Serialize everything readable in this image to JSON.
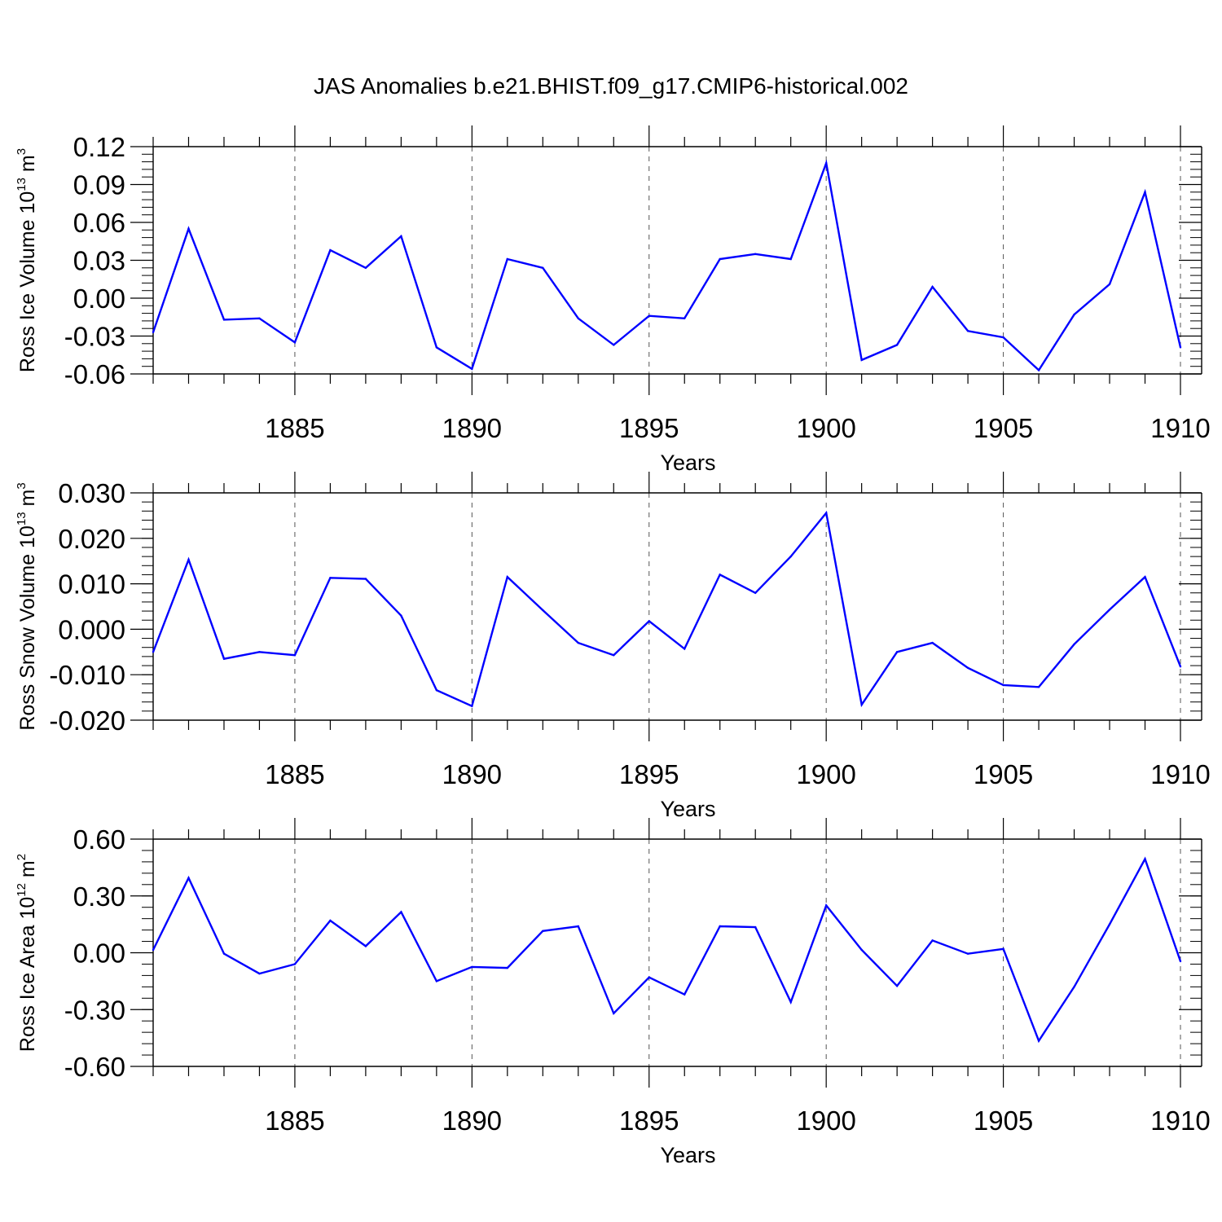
{
  "figure": {
    "title": "JAS Anomalies b.e21.BHIST.f09_g17.CMIP6-historical.002"
  },
  "style": {
    "line_color": "#0000ff",
    "axis_color": "#000000",
    "grid_color": "#555555"
  },
  "chart_data": [
    {
      "type": "line",
      "ylabel": {
        "main": "Ross Ice Volume 10",
        "exp": "13",
        "unit": " m",
        "unit_exp": "3"
      },
      "xlabel": "Years",
      "xlim": [
        1881,
        1910
      ],
      "ylim": [
        -0.06,
        0.12
      ],
      "x_major_ticks": [
        1885,
        1890,
        1895,
        1900,
        1905,
        1910
      ],
      "x_tick_labels": [
        "1885",
        "1890",
        "1895",
        "1900",
        "1905",
        "1910"
      ],
      "y_major_ticks": [
        -0.06,
        -0.03,
        0.0,
        0.03,
        0.06,
        0.09,
        0.12
      ],
      "y_tick_labels": [
        "-0.06",
        "-0.03",
        "0.00",
        "0.03",
        "0.06",
        "0.09",
        "0.12"
      ],
      "y_minor_step": 0.006,
      "grid": "vertical dashed at major x ticks",
      "x": [
        1881,
        1882,
        1883,
        1884,
        1885,
        1886,
        1887,
        1888,
        1889,
        1890,
        1891,
        1892,
        1893,
        1894,
        1895,
        1896,
        1897,
        1898,
        1899,
        1900,
        1901,
        1902,
        1903,
        1904,
        1905,
        1906,
        1907,
        1908,
        1909,
        1910
      ],
      "series": [
        {
          "values": [
            -0.027,
            0.055,
            -0.017,
            -0.016,
            -0.035,
            0.038,
            0.024,
            0.049,
            -0.039,
            -0.056,
            0.031,
            0.024,
            -0.016,
            -0.037,
            -0.014,
            -0.016,
            0.031,
            0.035,
            0.031,
            0.107,
            -0.049,
            -0.037,
            0.009,
            -0.026,
            -0.031,
            -0.057,
            -0.013,
            0.011,
            0.084,
            -0.039
          ]
        }
      ]
    },
    {
      "type": "line",
      "ylabel": {
        "main": "Ross Snow Volume 10",
        "exp": "13",
        "unit": " m",
        "unit_exp": "3"
      },
      "xlabel": "Years",
      "xlim": [
        1881,
        1910
      ],
      "ylim": [
        -0.02,
        0.03
      ],
      "x_major_ticks": [
        1885,
        1890,
        1895,
        1900,
        1905,
        1910
      ],
      "x_tick_labels": [
        "1885",
        "1890",
        "1895",
        "1900",
        "1905",
        "1910"
      ],
      "y_major_ticks": [
        -0.02,
        -0.01,
        0.0,
        0.01,
        0.02,
        0.03
      ],
      "y_tick_labels": [
        "-0.020",
        "-0.010",
        "0.000",
        "0.010",
        "0.020",
        "0.030"
      ],
      "y_minor_step": 0.002,
      "grid": "vertical dashed at major x ticks",
      "x": [
        1881,
        1882,
        1883,
        1884,
        1885,
        1886,
        1887,
        1888,
        1889,
        1890,
        1891,
        1892,
        1893,
        1894,
        1895,
        1896,
        1897,
        1898,
        1899,
        1900,
        1901,
        1902,
        1903,
        1904,
        1905,
        1906,
        1907,
        1908,
        1909,
        1910
      ],
      "series": [
        {
          "values": [
            -0.005,
            0.0153,
            -0.0065,
            -0.005,
            -0.0057,
            0.0113,
            0.0111,
            0.003,
            -0.0134,
            -0.0169,
            0.0115,
            0.0042,
            -0.003,
            -0.0057,
            0.0018,
            -0.0043,
            0.012,
            0.008,
            0.016,
            0.0256,
            -0.0166,
            -0.005,
            -0.003,
            -0.0085,
            -0.0123,
            -0.0127,
            -0.0033,
            0.0043,
            0.0115,
            -0.0082
          ]
        }
      ]
    },
    {
      "type": "line",
      "ylabel": {
        "main": "Ross Ice Area 10",
        "exp": "12",
        "unit": " m",
        "unit_exp": "2"
      },
      "xlabel": "Years",
      "xlim": [
        1881,
        1910
      ],
      "ylim": [
        -0.6,
        0.6
      ],
      "x_major_ticks": [
        1885,
        1890,
        1895,
        1900,
        1905,
        1910
      ],
      "x_tick_labels": [
        "1885",
        "1890",
        "1895",
        "1900",
        "1905",
        "1910"
      ],
      "y_major_ticks": [
        -0.6,
        -0.3,
        0.0,
        0.3,
        0.6
      ],
      "y_tick_labels": [
        "-0.60",
        "-0.30",
        "0.00",
        "0.30",
        "0.60"
      ],
      "y_minor_step": 0.06,
      "grid": "vertical dashed at major x ticks",
      "x": [
        1881,
        1882,
        1883,
        1884,
        1885,
        1886,
        1887,
        1888,
        1889,
        1890,
        1891,
        1892,
        1893,
        1894,
        1895,
        1896,
        1897,
        1898,
        1899,
        1900,
        1901,
        1902,
        1903,
        1904,
        1905,
        1906,
        1907,
        1908,
        1909,
        1910
      ],
      "series": [
        {
          "values": [
            0.015,
            0.395,
            -0.005,
            -0.11,
            -0.06,
            0.17,
            0.035,
            0.215,
            -0.15,
            -0.075,
            -0.08,
            0.115,
            0.14,
            -0.32,
            -0.13,
            -0.22,
            0.14,
            0.135,
            -0.26,
            0.25,
            0.015,
            -0.175,
            0.065,
            -0.005,
            0.02,
            -0.465,
            -0.18,
            0.15,
            0.495,
            -0.045
          ]
        }
      ]
    }
  ]
}
